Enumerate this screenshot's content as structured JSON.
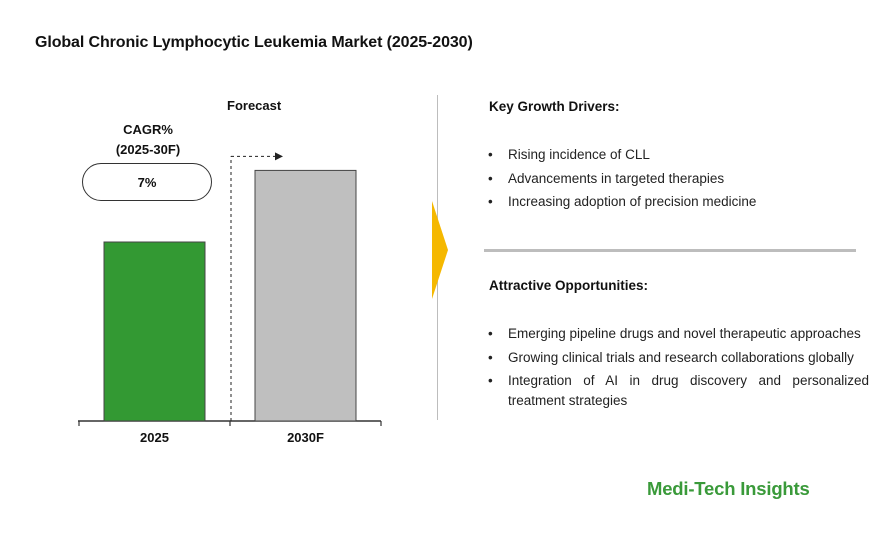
{
  "title": "Global Chronic Lymphocytic Leukemia Market (2025-2030)",
  "cagr": {
    "label": "CAGR%",
    "period": "(2025-30F)",
    "value": "7%"
  },
  "forecast_label": "Forecast",
  "chart_data": {
    "type": "bar",
    "categories": [
      "2025",
      "2030F"
    ],
    "values": [
      1.0,
      1.4
    ],
    "colors": [
      "#339933",
      "#bfbfbf"
    ],
    "forecast_start": "2030F",
    "grid": false,
    "legend": "none"
  },
  "drivers": {
    "heading": "Key Growth Drivers:",
    "items": [
      "Rising incidence of CLL",
      "Advancements in targeted therapies",
      "Increasing adoption of precision medicine"
    ]
  },
  "opportunities": {
    "heading": "Attractive Opportunities:",
    "items": [
      "Emerging pipeline drugs and novel therapeutic approaches",
      "Growing clinical trials and research collaborations globally",
      "Integration of AI in drug discovery and personalized treatment strategies"
    ]
  },
  "brand": "Medi-Tech Insights",
  "colors": {
    "accent": "#f5b800",
    "brand": "#3a9a3a"
  }
}
